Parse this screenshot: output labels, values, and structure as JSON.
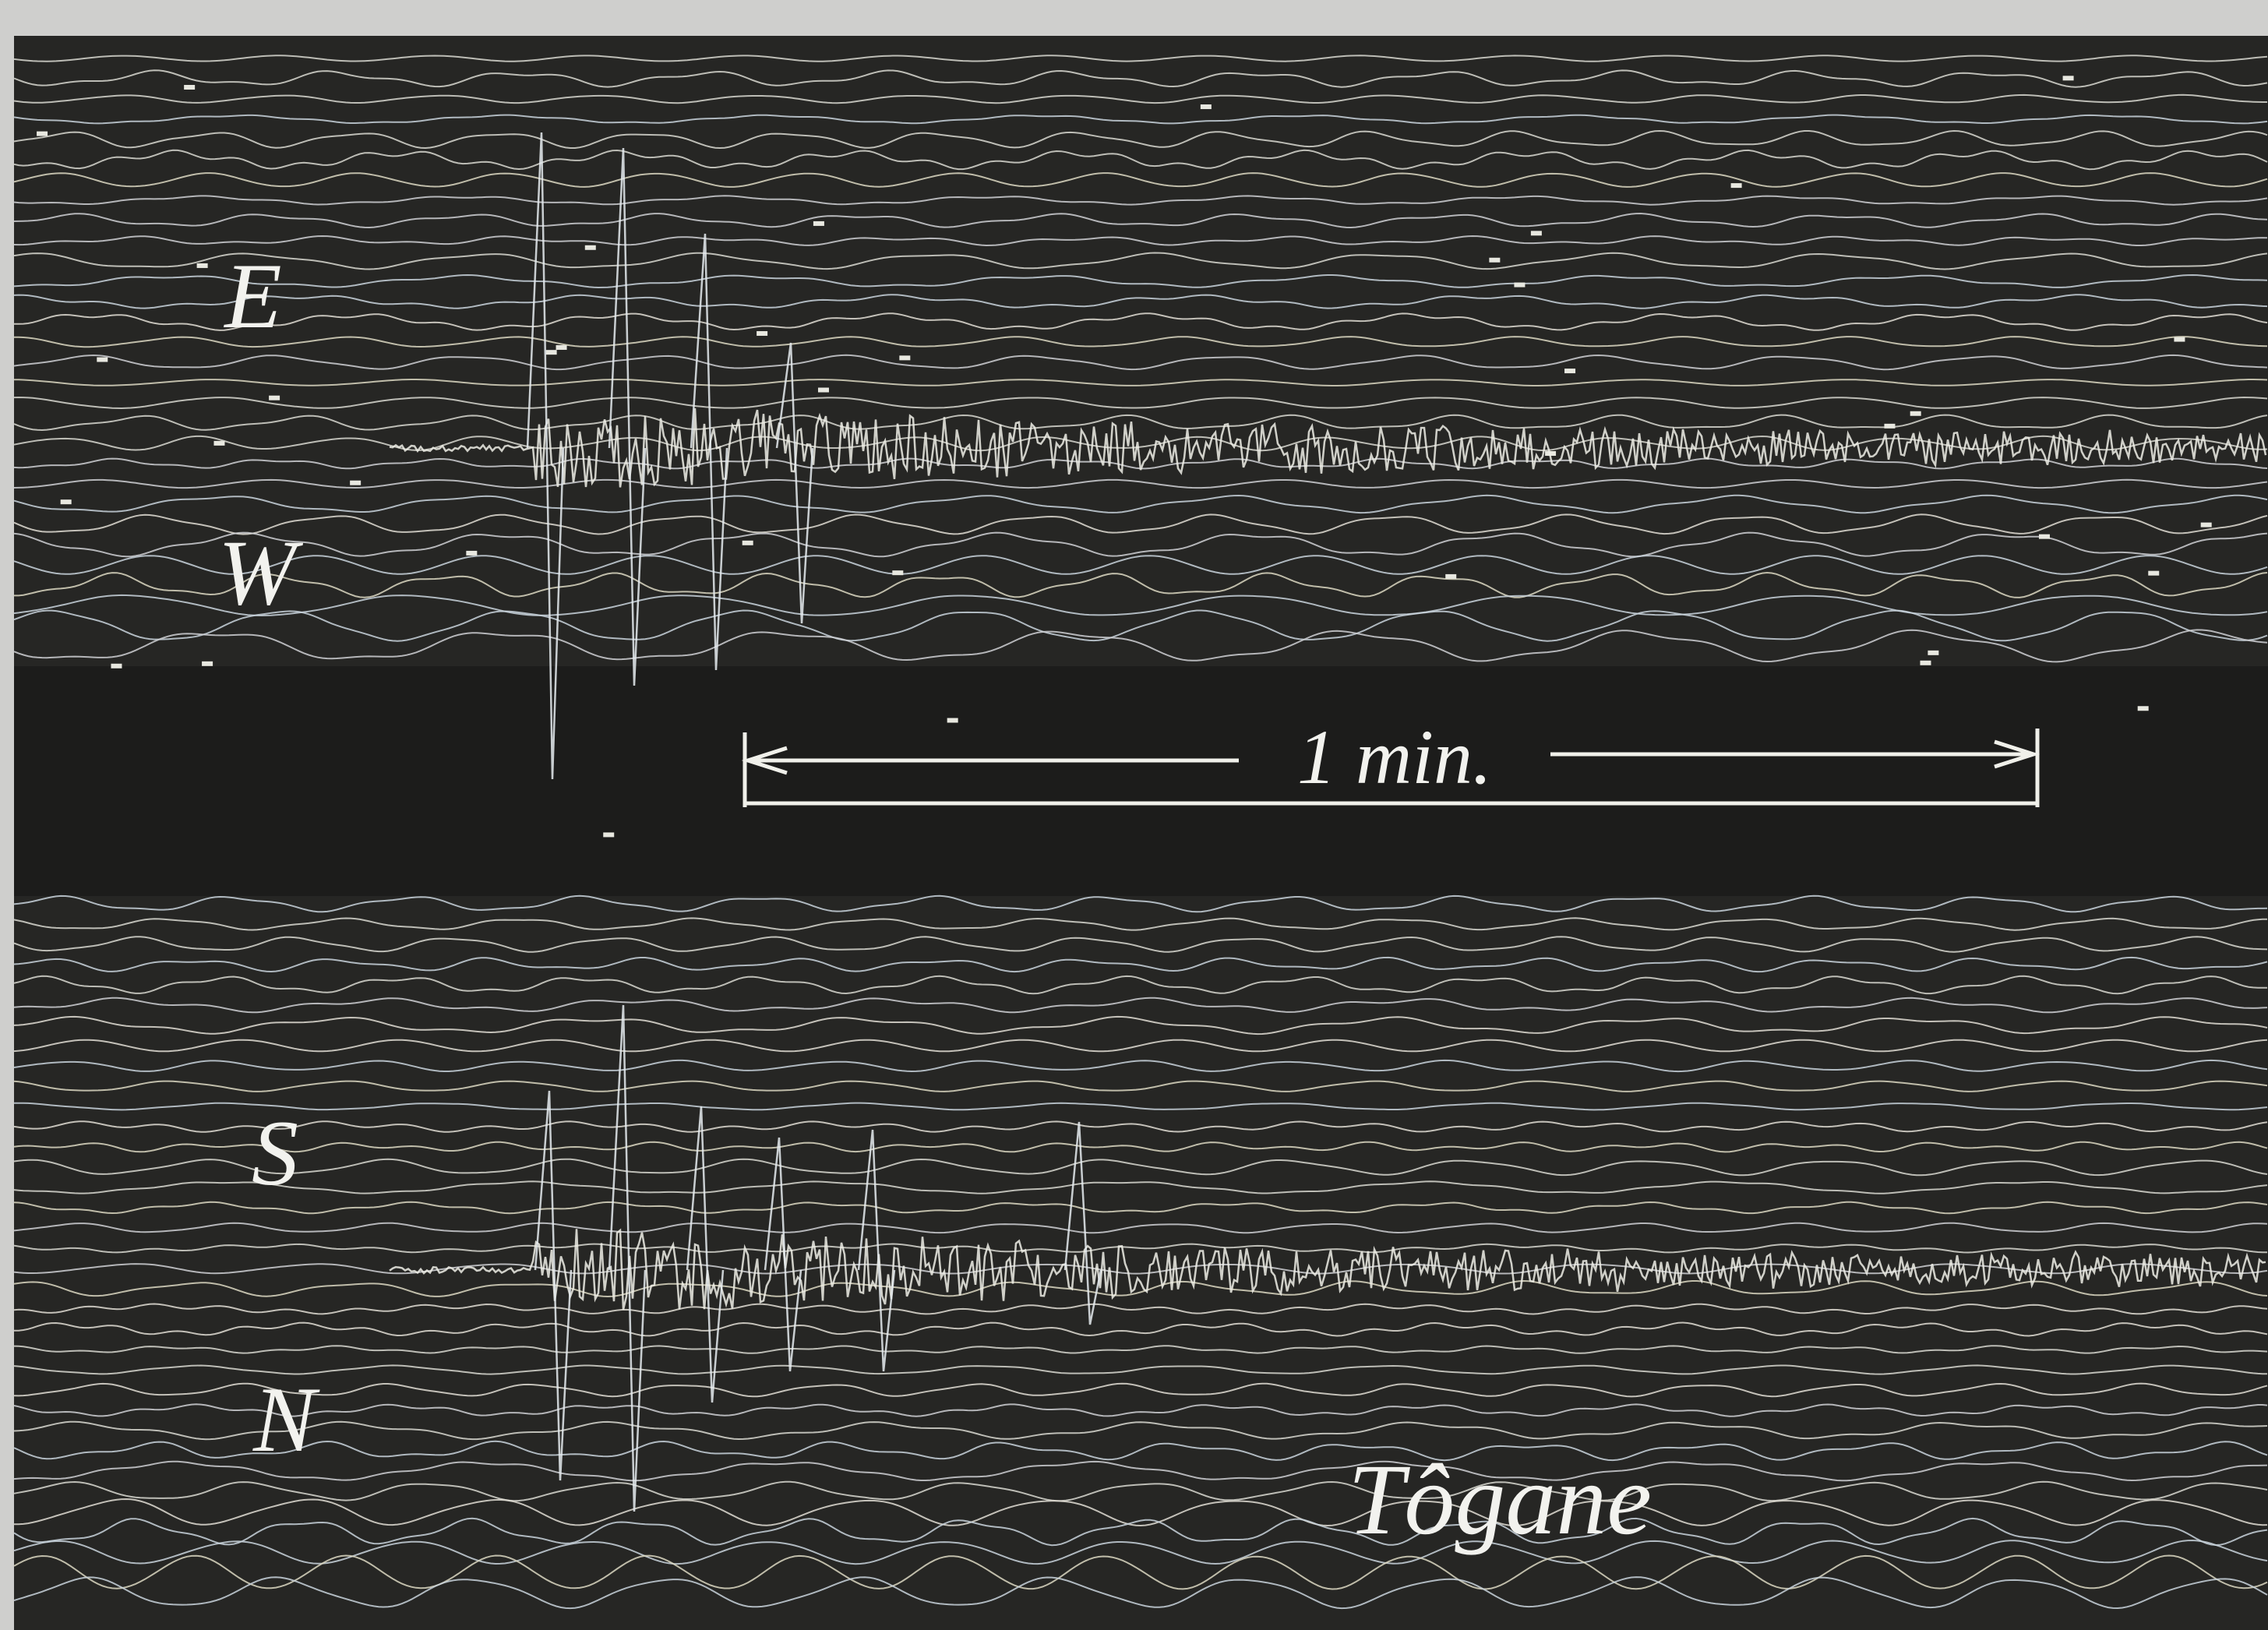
{
  "labels": {
    "east": "E",
    "west": "W",
    "south": "S",
    "north": "N"
  },
  "scale_bar": "1 min.",
  "station": "Tôgane"
}
